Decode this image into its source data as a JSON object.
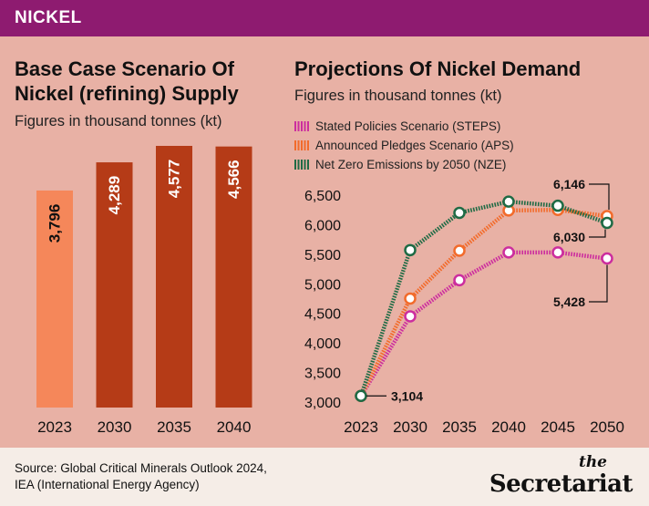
{
  "header": {
    "tag": "NICKEL"
  },
  "left_panel": {
    "title_line1": "Base Case Scenario Of",
    "title_line2": "Nickel (refining) Supply",
    "subtitle": "Figures in thousand tonnes (kt)"
  },
  "right_panel": {
    "title": "Projections Of Nickel Demand",
    "subtitle": "Figures in thousand tonnes (kt)"
  },
  "footer": {
    "source_line1": "Source: Global Critical Minerals Outlook 2024,",
    "source_line2": "IEA (International Energy Agency)",
    "brand_the": "the",
    "brand_name": "Secretariat"
  },
  "chart_data": [
    {
      "type": "bar",
      "title": "Base Case Scenario Of Nickel (refining) Supply",
      "subtitle": "Figures in thousand tonnes (kt)",
      "categories": [
        "2023",
        "2030",
        "2035",
        "2040"
      ],
      "values": [
        3796,
        4289,
        4577,
        4566
      ],
      "value_labels": [
        "3,796",
        "4,289",
        "4,577",
        "4,566"
      ],
      "colors": [
        "#F5875A",
        "#B53B17",
        "#B53B17",
        "#B53B17"
      ],
      "ylim": [
        0,
        4577
      ]
    },
    {
      "type": "line",
      "title": "Projections Of Nickel Demand",
      "subtitle": "Figures in thousand tonnes (kt)",
      "x": [
        "2023",
        "2030",
        "2035",
        "2040",
        "2045",
        "2050"
      ],
      "ylim": [
        3000,
        6500
      ],
      "yticks": [
        "3,000",
        "3,500",
        "4,000",
        "4,500",
        "5,000",
        "5,500",
        "6,000",
        "6,500"
      ],
      "series": [
        {
          "name": "Stated Policies Scenario (STEPS)",
          "color": "#CC2E9E",
          "values": [
            3104,
            4450,
            5060,
            5530,
            5530,
            5428
          ]
        },
        {
          "name": "Announced Pledges Scenario (APS)",
          "color": "#F26B2B",
          "values": [
            3104,
            4750,
            5560,
            6240,
            6250,
            6146
          ]
        },
        {
          "name": "Net Zero Emissions by 2050 (NZE)",
          "color": "#1F6B45",
          "values": [
            3104,
            5570,
            6200,
            6390,
            6320,
            6030
          ]
        }
      ],
      "annotations": [
        {
          "text": "3,104",
          "series": 0,
          "index": 0
        },
        {
          "text": "6,146",
          "series": 1,
          "index": 5
        },
        {
          "text": "6,030",
          "series": 2,
          "index": 5
        },
        {
          "text": "5,428",
          "series": 0,
          "index": 5
        }
      ]
    }
  ]
}
